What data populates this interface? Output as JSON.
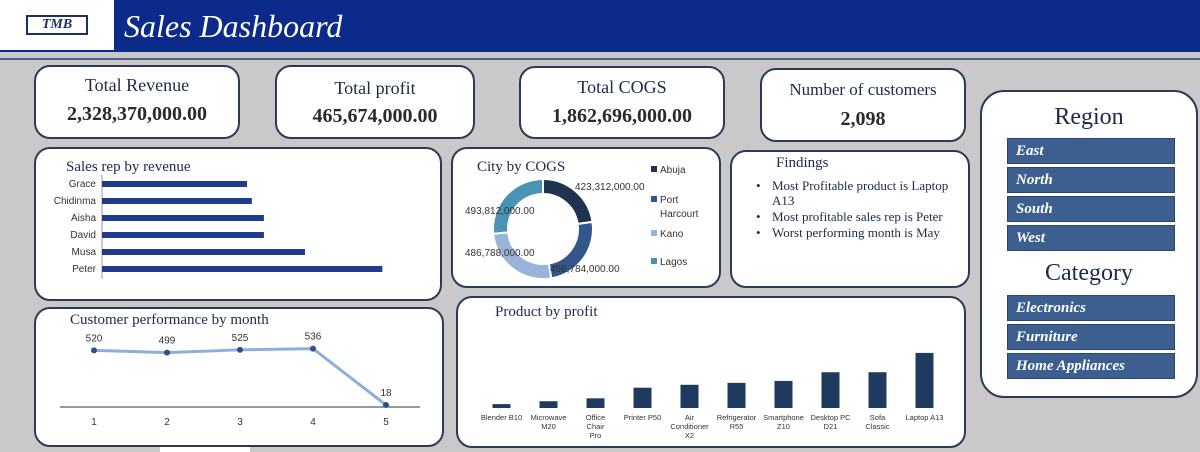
{
  "header": {
    "logo_text": "TMB",
    "title": "Sales Dashboard"
  },
  "kpis": {
    "revenue": {
      "label": "Total Revenue",
      "value": "2,328,370,000.00"
    },
    "profit": {
      "label": "Total profit",
      "value": "465,674,000.00"
    },
    "cogs": {
      "label": "Total COGS",
      "value": "1,862,696,000.00"
    },
    "customers": {
      "label": "Number of customers",
      "value": "2,098"
    }
  },
  "panels": {
    "sales_rep_title": "Sales rep by revenue",
    "city_title": "City by COGS",
    "findings_title": "Findings",
    "customer_title": "Customer performance by month",
    "product_title": "Product by profit"
  },
  "findings": [
    "Most Profitable product is Laptop A13",
    "Most profitable sales rep is Peter",
    "Worst performing month is May"
  ],
  "slicers": {
    "region": {
      "title": "Region",
      "items": [
        "East",
        "North",
        "South",
        "West"
      ]
    },
    "category": {
      "title": "Category",
      "items": [
        "Electronics",
        "Furniture",
        "Home Appliances"
      ]
    }
  },
  "colors": {
    "header": "#0b2a8a",
    "bar": "#1f3b8c",
    "slicer": "#3d5f8f",
    "product_bar": "#1f3a5f"
  },
  "chart_data": [
    {
      "id": "sales_rep",
      "type": "bar",
      "orientation": "horizontal",
      "categories": [
        "Grace",
        "Chidinma",
        "Aisha",
        "David",
        "Musa",
        "Peter"
      ],
      "values": [
        300,
        310,
        335,
        335,
        420,
        580
      ],
      "xlim": [
        0,
        600
      ]
    },
    {
      "id": "city_cogs",
      "type": "pie",
      "style": "donut",
      "categories": [
        "Abuja",
        "Port Harcourt",
        "Kano",
        "Lagos"
      ],
      "values": [
        423312000,
        458784000,
        486788000,
        493812000
      ],
      "labels": [
        "423,312,000.00",
        "458,784,000.00",
        "486,788,000.00",
        "493,812,000.00"
      ],
      "colors": [
        "#1f3350",
        "#33578c",
        "#98b4d8",
        "#4a93b4"
      ],
      "legend": "right"
    },
    {
      "id": "customer_month",
      "type": "line",
      "x": [
        1,
        2,
        3,
        4,
        5
      ],
      "values": [
        520,
        499,
        525,
        536,
        18
      ],
      "ylim": [
        0,
        560
      ]
    },
    {
      "id": "product_profit",
      "type": "bar",
      "categories": [
        "Blender B10",
        "Microwave M20",
        "Office Chair Pro",
        "Printer P50",
        "Air Conditioner X2",
        "Refrigerator R55",
        "Smartphone Z10",
        "Desktop PC D21",
        "Sofa Classic",
        "Laptop A13"
      ],
      "values": [
        4,
        7,
        10,
        21,
        24,
        26,
        28,
        37,
        37,
        57
      ],
      "ylim": [
        0,
        60
      ]
    }
  ]
}
